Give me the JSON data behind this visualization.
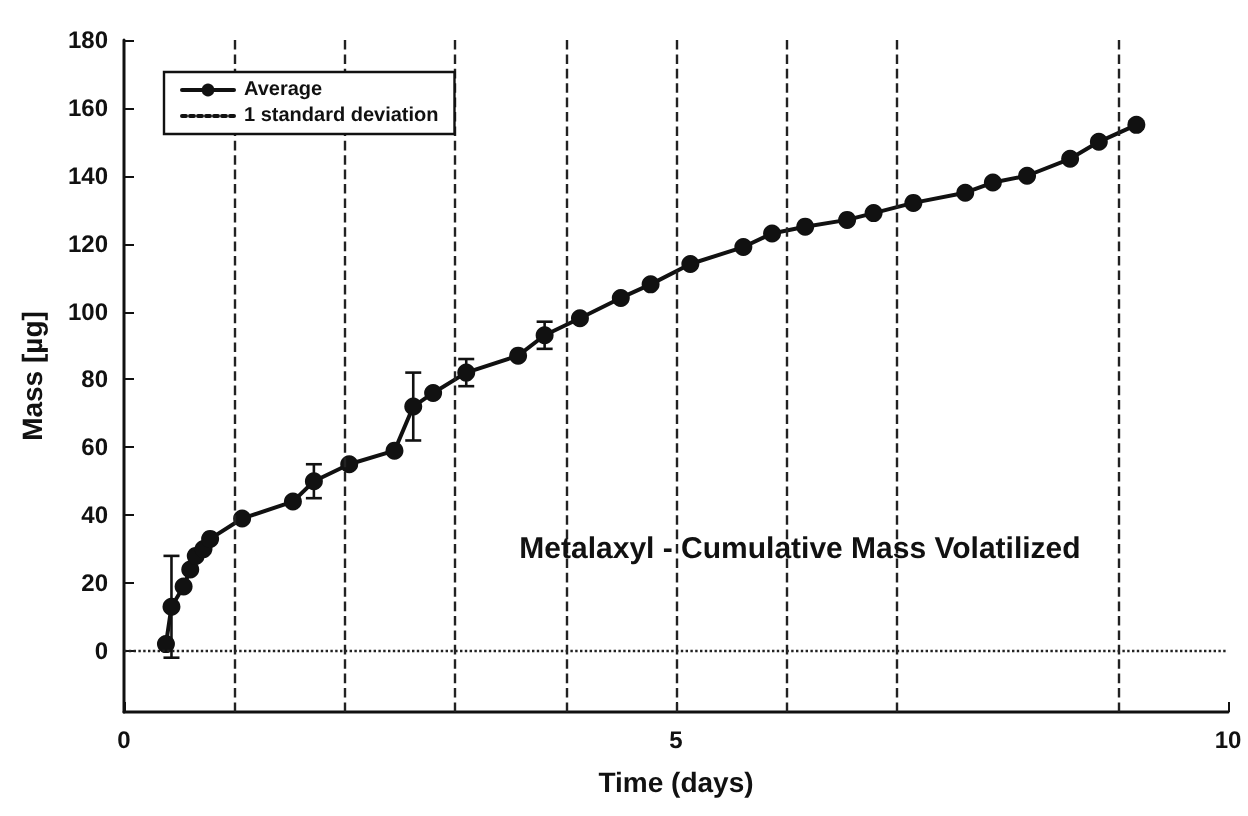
{
  "chart_data": {
    "type": "line",
    "xlabel": "Time (days)",
    "ylabel": "Mass [µg]",
    "xlim": [
      0,
      10
    ],
    "xticks": [
      0,
      5,
      10
    ],
    "ylim": [
      -18,
      180
    ],
    "yticks": [
      0,
      20,
      40,
      60,
      80,
      100,
      120,
      140,
      160,
      180
    ],
    "grid": false,
    "legend": "top left",
    "marker": "circle",
    "annotations": [
      "Metalaxyl - Cumulative Mass Volatilized"
    ],
    "series": [
      {
        "name": "Average",
        "color": "#111111",
        "line_style": "solid",
        "x": [
          0.38,
          0.43,
          0.54,
          0.6,
          0.65,
          0.72,
          0.78,
          1.07,
          1.53,
          1.72,
          2.04,
          2.45,
          2.62,
          2.8,
          3.1,
          3.57,
          3.81,
          4.13,
          4.5,
          4.77,
          5.13,
          5.61,
          5.87,
          6.17,
          6.55,
          6.79,
          7.15,
          7.62,
          7.87,
          8.18,
          8.57,
          8.83,
          9.17
        ],
        "values": [
          2,
          13,
          19,
          24,
          28,
          30,
          33,
          39,
          44,
          50,
          55,
          59,
          72,
          76,
          82,
          87,
          93,
          98,
          104,
          108,
          114,
          119,
          123,
          125,
          127,
          129,
          132,
          135,
          138,
          140,
          145,
          150,
          155
        ],
        "errors": [
          null,
          [
            -2,
            28
          ],
          null,
          null,
          null,
          null,
          null,
          null,
          null,
          [
            45,
            55
          ],
          null,
          null,
          [
            62,
            82
          ],
          null,
          [
            78,
            86
          ],
          null,
          [
            89,
            97
          ],
          null,
          null,
          null,
          null,
          null,
          null,
          null,
          null,
          null,
          null,
          null,
          null,
          null,
          null,
          null,
          null
        ]
      },
      {
        "name": "1 standard deviation",
        "color": "#111111",
        "line_style": "dotted",
        "marker": "none"
      }
    ],
    "ref_lines": [
      {
        "axis": "x",
        "value": 1,
        "line_style": "dashed",
        "color": "#222222"
      },
      {
        "axis": "x",
        "value": 2,
        "line_style": "dashed",
        "color": "#222222"
      },
      {
        "axis": "x",
        "value": 3,
        "line_style": "dashed",
        "color": "#222222"
      },
      {
        "axis": "x",
        "value": 4,
        "line_style": "dashed",
        "color": "#222222"
      },
      {
        "axis": "x",
        "value": 5,
        "line_style": "dashed",
        "color": "#222222"
      },
      {
        "axis": "x",
        "value": 6,
        "line_style": "dashed",
        "color": "#222222"
      },
      {
        "axis": "x",
        "value": 7,
        "line_style": "dashed",
        "color": "#222222"
      },
      {
        "axis": "x",
        "value": 9,
        "line_style": "dashed",
        "color": "#222222"
      },
      {
        "axis": "y",
        "value": 0,
        "line_style": "dotted",
        "color": "#222222"
      }
    ]
  }
}
